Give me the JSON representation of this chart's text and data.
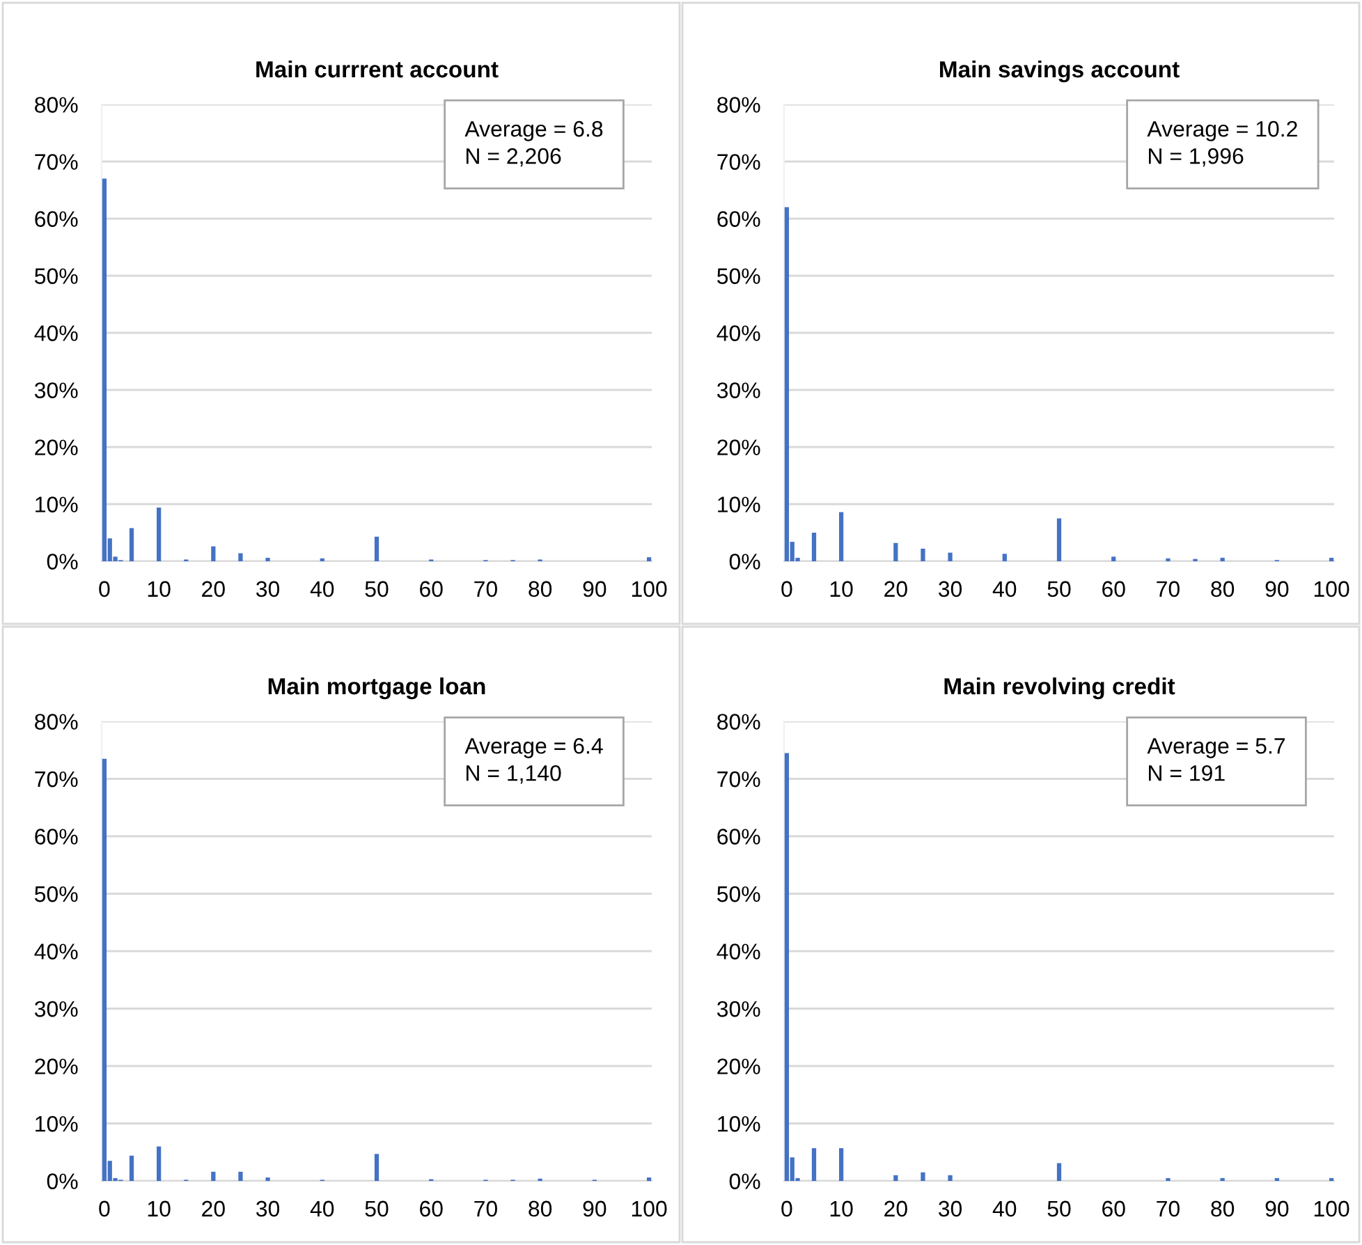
{
  "chart_data": [
    {
      "type": "bar",
      "title": "Main currrent account",
      "color": "#4472c4",
      "annotations": [
        "Average = 6.8\nN = 2,206"
      ],
      "x": [
        0,
        1,
        2,
        3,
        5,
        10,
        15,
        20,
        25,
        30,
        40,
        50,
        60,
        70,
        75,
        80,
        100
      ],
      "values": [
        67,
        4.0,
        0.8,
        0.2,
        5.8,
        9.4,
        0.3,
        2.6,
        1.4,
        0.6,
        0.5,
        4.3,
        0.3,
        0.2,
        0.2,
        0.3,
        0.7
      ],
      "xlim": [
        -0.5,
        100.5
      ],
      "xticks": [
        0,
        10,
        20,
        30,
        40,
        50,
        60,
        70,
        80,
        90,
        100
      ],
      "ylim": [
        0,
        80
      ],
      "yticks": [
        {
          "value": 0,
          "label": "0%"
        },
        {
          "value": 10,
          "label": "10%"
        },
        {
          "value": 20,
          "label": "20%"
        },
        {
          "value": 30,
          "label": "30%"
        },
        {
          "value": 40,
          "label": "40%"
        },
        {
          "value": 50,
          "label": "50%"
        },
        {
          "value": 60,
          "label": "60%"
        },
        {
          "value": 70,
          "label": "70%"
        },
        {
          "value": 80,
          "label": "80%"
        }
      ],
      "grid": "y",
      "legend": false
    },
    {
      "type": "bar",
      "title": "Main savings account",
      "color": "#4472c4",
      "annotations": [
        "Average = 10.2\nN = 1,996"
      ],
      "x": [
        0,
        1,
        2,
        5,
        10,
        20,
        25,
        30,
        40,
        50,
        60,
        70,
        75,
        80,
        90,
        100
      ],
      "values": [
        62,
        3.4,
        0.6,
        5.0,
        8.6,
        3.2,
        2.2,
        1.5,
        1.3,
        7.5,
        0.8,
        0.5,
        0.4,
        0.6,
        0.2,
        0.6
      ],
      "xlim": [
        -0.5,
        100.5
      ],
      "xticks": [
        0,
        10,
        20,
        30,
        40,
        50,
        60,
        70,
        80,
        90,
        100
      ],
      "ylim": [
        0,
        80
      ],
      "yticks": [
        {
          "value": 0,
          "label": "0%"
        },
        {
          "value": 10,
          "label": "10%"
        },
        {
          "value": 20,
          "label": "20%"
        },
        {
          "value": 30,
          "label": "30%"
        },
        {
          "value": 40,
          "label": "40%"
        },
        {
          "value": 50,
          "label": "50%"
        },
        {
          "value": 60,
          "label": "60%"
        },
        {
          "value": 70,
          "label": "70%"
        },
        {
          "value": 80,
          "label": "80%"
        }
      ],
      "grid": "y",
      "legend": false
    },
    {
      "type": "bar",
      "title": "Main mortgage loan",
      "color": "#4472c4",
      "annotations": [
        "Average = 6.4\nN = 1,140"
      ],
      "x": [
        0,
        1,
        2,
        3,
        5,
        10,
        15,
        20,
        25,
        30,
        40,
        50,
        60,
        70,
        75,
        80,
        90,
        100
      ],
      "values": [
        73.5,
        3.5,
        0.5,
        0.2,
        4.4,
        6.0,
        0.2,
        1.6,
        1.6,
        0.6,
        0.2,
        4.7,
        0.3,
        0.2,
        0.2,
        0.4,
        0.2,
        0.6
      ],
      "xlim": [
        -0.5,
        100.5
      ],
      "xticks": [
        0,
        10,
        20,
        30,
        40,
        50,
        60,
        70,
        80,
        90,
        100
      ],
      "ylim": [
        0,
        80
      ],
      "yticks": [
        {
          "value": 0,
          "label": "0%"
        },
        {
          "value": 10,
          "label": "10%"
        },
        {
          "value": 20,
          "label": "20%"
        },
        {
          "value": 30,
          "label": "30%"
        },
        {
          "value": 40,
          "label": "40%"
        },
        {
          "value": 50,
          "label": "50%"
        },
        {
          "value": 60,
          "label": "60%"
        },
        {
          "value": 70,
          "label": "70%"
        },
        {
          "value": 80,
          "label": "80%"
        }
      ],
      "grid": "y",
      "legend": false
    },
    {
      "type": "bar",
      "title": "Main revolving credit",
      "color": "#4472c4",
      "annotations": [
        "Average = 5.7\nN = 191"
      ],
      "x": [
        0,
        1,
        2,
        5,
        10,
        20,
        25,
        30,
        50,
        70,
        80,
        90,
        100
      ],
      "values": [
        74.5,
        4.1,
        0.5,
        5.7,
        5.7,
        1.0,
        1.5,
        1.0,
        3.1,
        0.5,
        0.5,
        0.5,
        0.5
      ],
      "xlim": [
        -0.5,
        100.5
      ],
      "xticks": [
        0,
        10,
        20,
        30,
        40,
        50,
        60,
        70,
        80,
        90,
        100
      ],
      "ylim": [
        0,
        80
      ],
      "yticks": [
        {
          "value": 0,
          "label": "0%"
        },
        {
          "value": 10,
          "label": "10%"
        },
        {
          "value": 20,
          "label": "20%"
        },
        {
          "value": 30,
          "label": "30%"
        },
        {
          "value": 40,
          "label": "40%"
        },
        {
          "value": 50,
          "label": "50%"
        },
        {
          "value": 60,
          "label": "60%"
        },
        {
          "value": 70,
          "label": "70%"
        },
        {
          "value": 80,
          "label": "80%"
        }
      ],
      "grid": "y",
      "legend": false
    }
  ]
}
